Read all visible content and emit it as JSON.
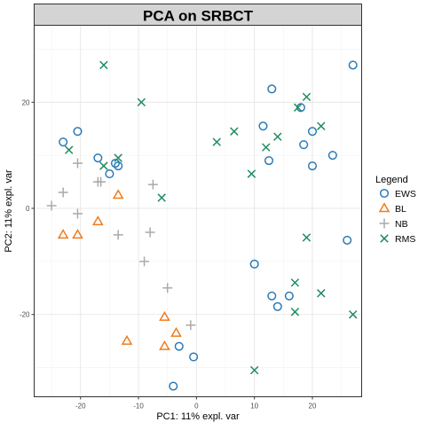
{
  "chart_data": {
    "type": "scatter",
    "title": "PCA on SRBCT",
    "xlabel": "PC1: 11% expl. var",
    "ylabel": "PC2: 11% expl. var",
    "xlim": [
      -28,
      28.5
    ],
    "ylim": [
      -35.5,
      34.5
    ],
    "xticks": [
      -20,
      -10,
      0,
      10,
      20
    ],
    "yticks": [
      -20,
      0,
      20
    ],
    "grid": true,
    "legend": {
      "title": "Legend",
      "placement": "right"
    },
    "series": [
      {
        "name": "EWS",
        "marker": "circle",
        "color": "#2C7BB6",
        "points": [
          [
            27,
            27
          ],
          [
            13,
            22.5
          ],
          [
            18,
            19
          ],
          [
            11.5,
            15.5
          ],
          [
            20,
            14.5
          ],
          [
            18.5,
            12
          ],
          [
            12.5,
            9
          ],
          [
            23.5,
            10
          ],
          [
            20,
            8
          ],
          [
            26,
            -6
          ],
          [
            -23,
            12.5
          ],
          [
            -20.5,
            14.5
          ],
          [
            -17,
            9.5
          ],
          [
            -14,
            8.5
          ],
          [
            -13.5,
            8
          ],
          [
            -15,
            6.5
          ],
          [
            10,
            -10.5
          ],
          [
            13,
            -16.5
          ],
          [
            14,
            -18.5
          ],
          [
            16,
            -16.5
          ],
          [
            -3,
            -26
          ],
          [
            -0.5,
            -28
          ],
          [
            -4,
            -33.5
          ]
        ]
      },
      {
        "name": "BL",
        "marker": "triangle",
        "color": "#F07C1C",
        "points": [
          [
            -13.5,
            2.5
          ],
          [
            -17,
            -2.5
          ],
          [
            -23,
            -5
          ],
          [
            -20.5,
            -5
          ],
          [
            -5.5,
            -20.5
          ],
          [
            -3.5,
            -23.5
          ],
          [
            -12,
            -25
          ],
          [
            -5.5,
            -26
          ]
        ]
      },
      {
        "name": "NB",
        "marker": "plus",
        "color": "#AAAAAA",
        "points": [
          [
            -25,
            0.5
          ],
          [
            -23,
            3
          ],
          [
            -20.5,
            -1
          ],
          [
            -20.5,
            8.5
          ],
          [
            -17,
            5
          ],
          [
            -16.5,
            5
          ],
          [
            -7.5,
            4.5
          ],
          [
            -13.5,
            -5
          ],
          [
            -8,
            -4.5
          ],
          [
            -9,
            -10
          ],
          [
            -5,
            -15
          ],
          [
            -1,
            -22
          ]
        ]
      },
      {
        "name": "RMS",
        "marker": "cross",
        "color": "#1F8C5E",
        "points": [
          [
            -16,
            27
          ],
          [
            -9.5,
            20
          ],
          [
            19,
            21
          ],
          [
            17.5,
            19
          ],
          [
            21.5,
            15.5
          ],
          [
            14,
            13.5
          ],
          [
            6.5,
            14.5
          ],
          [
            3.5,
            12.5
          ],
          [
            12,
            11.5
          ],
          [
            9.5,
            6.5
          ],
          [
            -22,
            11
          ],
          [
            -13.5,
            9.5
          ],
          [
            -16,
            8
          ],
          [
            -6,
            2
          ],
          [
            19,
            -5.5
          ],
          [
            17,
            -14
          ],
          [
            21.5,
            -16
          ],
          [
            17,
            -19.5
          ],
          [
            27,
            -20
          ],
          [
            10,
            -30.5
          ]
        ]
      }
    ]
  }
}
